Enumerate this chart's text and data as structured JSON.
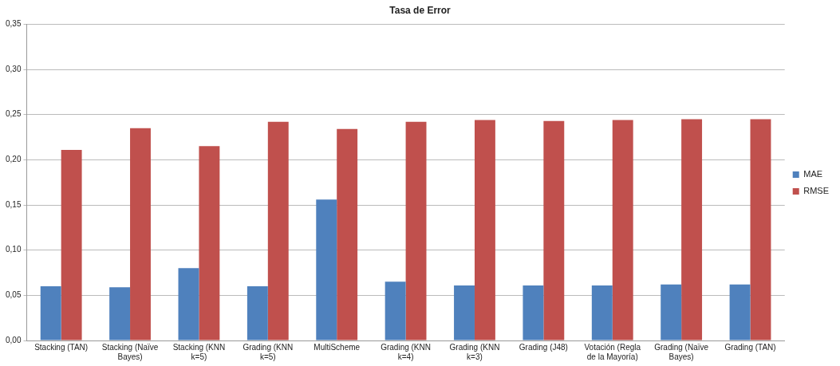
{
  "chart_data": {
    "type": "bar",
    "title": "Tasa de Error",
    "categories": [
      "Stacking (TAN)",
      "Stacking (Naïve Bayes)",
      "Stacking (KNN k=5)",
      "Grading (KNN k=5)",
      "MultiScheme",
      "Grading (KNN k=4)",
      "Grading (KNN k=3)",
      "Grading (J48)",
      "Votación (Regla de la Mayoría)",
      "Grading (Naïve Bayes)",
      "Grading (TAN)"
    ],
    "series": [
      {
        "name": "MAE",
        "color": "#4f81bd",
        "values": [
          0.06,
          0.059,
          0.08,
          0.06,
          0.156,
          0.065,
          0.061,
          0.061,
          0.061,
          0.062,
          0.062
        ]
      },
      {
        "name": "RMSE",
        "color": "#c0504d",
        "values": [
          0.211,
          0.235,
          0.215,
          0.242,
          0.234,
          0.242,
          0.244,
          0.243,
          0.244,
          0.245,
          0.245
        ]
      }
    ],
    "ylim": [
      0,
      0.35
    ],
    "yticks": [
      {
        "value": 0,
        "label": "0,00"
      },
      {
        "value": 0.05,
        "label": "0,05"
      },
      {
        "value": 0.1,
        "label": "0,10"
      },
      {
        "value": 0.15,
        "label": "0,15"
      },
      {
        "value": 0.2,
        "label": "0,20"
      },
      {
        "value": 0.25,
        "label": "0,25"
      },
      {
        "value": 0.3,
        "label": "0,30"
      },
      {
        "value": 0.35,
        "label": "0,35"
      }
    ],
    "grid": "y",
    "legend": "right"
  }
}
